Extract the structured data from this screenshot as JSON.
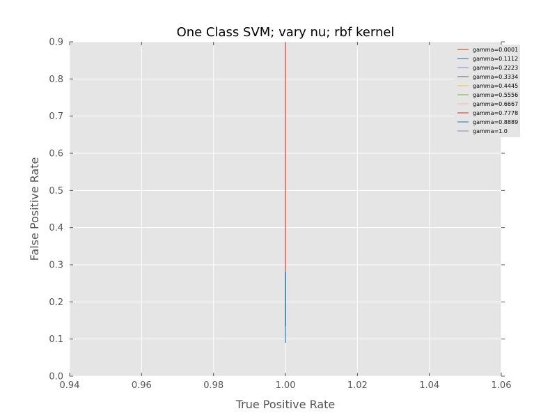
{
  "chart_data": {
    "type": "line",
    "title": "One Class SVM; vary nu; rbf kernel",
    "xlabel": "True Positive Rate",
    "ylabel": "False Positive Rate",
    "xlim": [
      0.94,
      1.06
    ],
    "ylim": [
      0.0,
      0.9
    ],
    "xticks": [
      "0.94",
      "0.96",
      "0.98",
      "1.00",
      "1.02",
      "1.04",
      "1.06"
    ],
    "yticks": [
      "0.0",
      "0.1",
      "0.2",
      "0.3",
      "0.4",
      "0.5",
      "0.6",
      "0.7",
      "0.8",
      "0.9"
    ],
    "grid": true,
    "legend_position": "top-right",
    "background": "#e5e5e5",
    "series": [
      {
        "name": "gamma=0.0001",
        "color": "#e24a33",
        "x": [
          1.0,
          1.0
        ],
        "y": [
          0.285,
          0.895
        ]
      },
      {
        "name": "gamma=0.1112",
        "color": "#348abd",
        "x": [
          1.0,
          1.0
        ],
        "y": [
          0.09,
          0.285
        ]
      },
      {
        "name": "gamma=0.2223",
        "color": "#988ed5",
        "x": [
          1.0,
          1.0
        ],
        "y": [
          0.135,
          0.28
        ]
      },
      {
        "name": "gamma=0.3334",
        "color": "#777777",
        "x": [
          1.0,
          1.0
        ],
        "y": [
          0.135,
          0.28
        ]
      },
      {
        "name": "gamma=0.4445",
        "color": "#fbc15e",
        "x": [
          1.0,
          1.0
        ],
        "y": [
          0.135,
          0.28
        ]
      },
      {
        "name": "gamma=0.5556",
        "color": "#8eba42",
        "x": [
          1.0,
          1.0
        ],
        "y": [
          0.135,
          0.28
        ]
      },
      {
        "name": "gamma=0.6667",
        "color": "#ffb5b8",
        "x": [
          1.0,
          1.0
        ],
        "y": [
          0.135,
          0.28
        ]
      },
      {
        "name": "gamma=0.7778",
        "color": "#e24a33",
        "x": [
          1.0,
          1.0
        ],
        "y": [
          0.135,
          0.28
        ]
      },
      {
        "name": "gamma=0.8889",
        "color": "#348abd",
        "x": [
          1.0,
          1.0
        ],
        "y": [
          0.135,
          0.28
        ]
      },
      {
        "name": "gamma=1.0",
        "color": "#988ed5",
        "x": [
          1.0,
          1.0
        ],
        "y": [
          0.135,
          0.28
        ]
      }
    ]
  }
}
